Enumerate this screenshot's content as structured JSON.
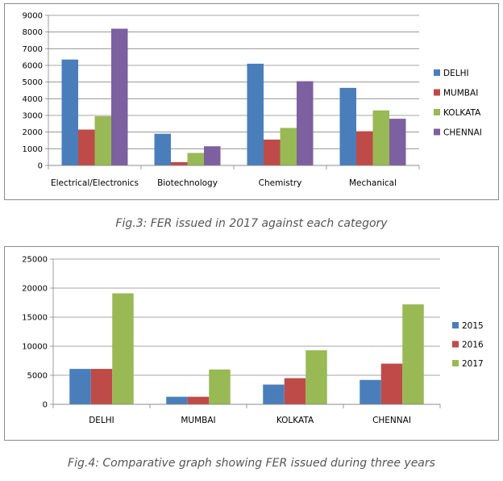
{
  "chart_data": [
    {
      "type": "bar",
      "categories": [
        "Electrical/Electronics",
        "Biotechnology",
        "Chemistry",
        "Mechanical"
      ],
      "series": [
        {
          "name": "DELHI",
          "color": "#4a7ebb",
          "values": [
            6350,
            1900,
            6100,
            4650
          ]
        },
        {
          "name": "MUMBAI",
          "color": "#be4b48",
          "values": [
            2150,
            200,
            1550,
            2050
          ]
        },
        {
          "name": "KOLKATA",
          "color": "#98b954",
          "values": [
            2950,
            750,
            2250,
            3300
          ]
        },
        {
          "name": "CHENNAI",
          "color": "#7d60a0",
          "values": [
            8200,
            1150,
            5050,
            2800
          ]
        }
      ],
      "ylim": [
        0,
        9000
      ],
      "yticks": [
        0,
        1000,
        2000,
        3000,
        4000,
        5000,
        6000,
        7000,
        8000,
        9000
      ],
      "grid": true,
      "legend": "right"
    },
    {
      "type": "bar",
      "categories": [
        "DELHI",
        "MUMBAI",
        "KOLKATA",
        "CHENNAI"
      ],
      "series": [
        {
          "name": "2015",
          "color": "#4a7ebb",
          "values": [
            6100,
            1300,
            3400,
            4200
          ]
        },
        {
          "name": "2016",
          "color": "#be4b48",
          "values": [
            6100,
            1300,
            4500,
            7000
          ]
        },
        {
          "name": "2017",
          "color": "#98b954",
          "values": [
            19100,
            6000,
            9300,
            17200
          ]
        }
      ],
      "ylim": [
        0,
        25000
      ],
      "yticks": [
        0,
        5000,
        10000,
        15000,
        20000,
        25000
      ],
      "grid": true,
      "legend": "right"
    }
  ],
  "captions": {
    "fig3": "Fig.3: FER issued in 2017 against each category",
    "fig4": "Fig.4: Comparative graph showing FER issued during three years"
  }
}
